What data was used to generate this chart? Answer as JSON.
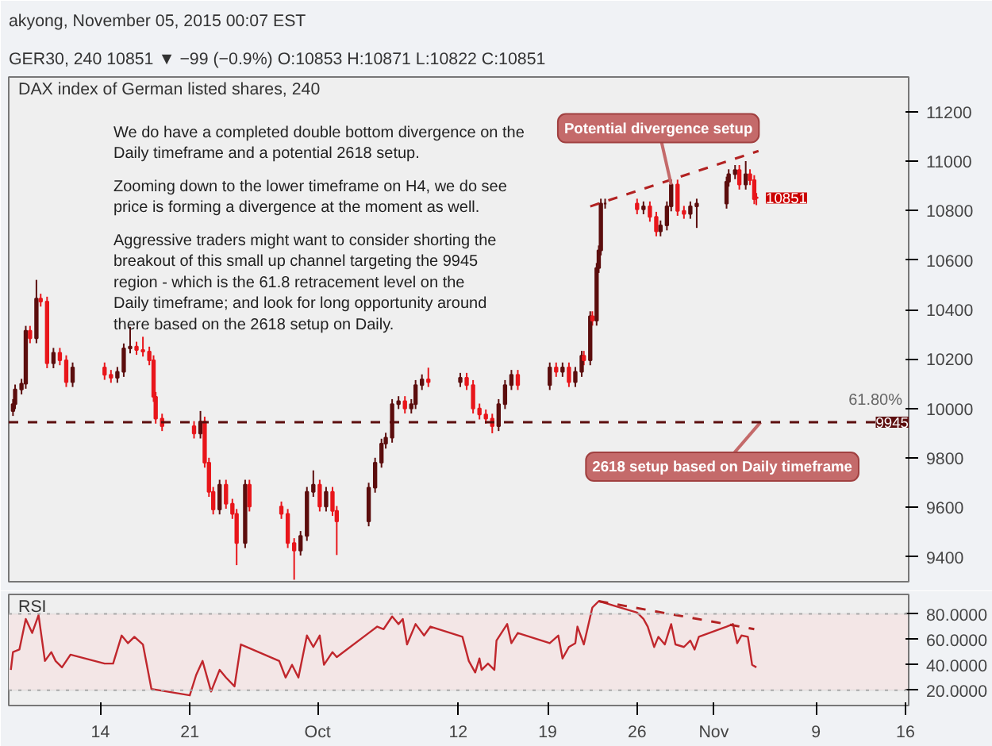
{
  "chart_data": [
    {
      "type": "candlestick",
      "title": "DAX index of German listed shares, 240",
      "subtitle": "GER30, 240  10851 ▼ −99 (−0.9%)  O:10853  H:10871  L:10822  C:10851",
      "annotations": [
        "akyong, November 05, 2015 00:07 EST",
        "We do have a completed double bottom divergence on the Daily timeframe and a potential 2618 setup.",
        "Zooming down to the lower timeframe on H4, we do see price is forming a divergence at the moment as well.",
        "Aggressive traders might want to consider shorting the breakout of this small up channel targeting the 9945 region - which is the 61.8 retracement level on the Daily timeframe; and look for long opportunity around there based on the 2618 setup on Daily.",
        {
          "text": "Potential divergence setup",
          "x": "2015-10-28T16:00",
          "y": 10905
        },
        {
          "text": "2618 setup based on Daily timeframe",
          "x": "2015-11-04T16:00",
          "y": 9945
        },
        {
          "text": "61.80%",
          "x": "2015-11-16T06:00",
          "y": 9945
        },
        {
          "text": "10851",
          "x": "2015-11-04T08:00",
          "y": 10851
        }
      ],
      "x": [
        "2015-09-07T04:00",
        "2015-09-07T08:00",
        "2015-09-07T20:00",
        "2015-09-08T04:00",
        "2015-09-08T12:00",
        "2015-09-09T00:00",
        "2015-09-09T08:00",
        "2015-09-09T20:00",
        "2015-09-10T08:00",
        "2015-09-10T20:00",
        "2015-09-11T08:00",
        "2015-09-11T20:00",
        "2015-09-14T08:00",
        "2015-09-14T20:00",
        "2015-09-15T08:00",
        "2015-09-15T20:00",
        "2015-09-16T08:00",
        "2015-09-16T20:00",
        "2015-09-17T08:00",
        "2015-09-17T20:00",
        "2015-09-18T04:00",
        "2015-09-18T08:00",
        "2015-09-18T20:00",
        "2015-09-21T08:00",
        "2015-09-21T20:00",
        "2015-09-22T04:00",
        "2015-09-22T12:00",
        "2015-09-22T20:00",
        "2015-09-23T08:00",
        "2015-09-23T20:00",
        "2015-09-24T08:00",
        "2015-09-24T16:00",
        "2015-09-25T08:00",
        "2015-09-25T16:00",
        "2015-09-28T04:00",
        "2015-09-28T16:00",
        "2015-09-29T04:00",
        "2015-09-29T16:00",
        "2015-09-30T04:00",
        "2015-09-30T16:00",
        "2015-10-01T04:00",
        "2015-10-01T16:00",
        "2015-10-02T04:00",
        "2015-10-02T12:00",
        "2015-10-05T00:00",
        "2015-10-05T12:00",
        "2015-10-06T00:00",
        "2015-10-06T08:00",
        "2015-10-06T20:00",
        "2015-10-07T08:00",
        "2015-10-07T20:00",
        "2015-10-08T08:00",
        "2015-10-08T16:00",
        "2015-10-09T04:00",
        "2015-10-09T16:00",
        "2015-10-12T04:00",
        "2015-10-12T16:00",
        "2015-10-13T04:00",
        "2015-10-13T16:00",
        "2015-10-14T04:00",
        "2015-10-14T16:00",
        "2015-10-15T04:00",
        "2015-10-15T16:00",
        "2015-10-16T04:00",
        "2015-10-16T16:00",
        "2015-10-19T04:00",
        "2015-10-19T16:00",
        "2015-10-20T04:00",
        "2015-10-20T16:00",
        "2015-10-21T04:00",
        "2015-10-21T16:00",
        "2015-10-21T20:00",
        "2015-10-22T08:00",
        "2015-10-22T12:00",
        "2015-10-22T20:00",
        "2015-10-23T00:00",
        "2015-10-23T04:00",
        "2015-10-23T12:00",
        "2015-10-26T00:00",
        "2015-10-26T12:00",
        "2015-10-27T00:00",
        "2015-10-27T12:00",
        "2015-10-27T20:00",
        "2015-10-28T08:00",
        "2015-10-28T16:00",
        "2015-10-29T04:00",
        "2015-10-29T16:00",
        "2015-10-30T04:00",
        "2015-10-30T16:00",
        "2015-11-02T00:00",
        "2015-11-02T04:00",
        "2015-11-02T16:00",
        "2015-11-03T00:00",
        "2015-11-03T12:00",
        "2015-11-03T20:00",
        "2015-11-04T04:00",
        "2015-11-04T08:00"
      ],
      "ohlc": [
        [
          9990,
          10038,
          9970,
          10018
        ],
        [
          10018,
          10097,
          9998,
          10077
        ],
        [
          10077,
          10120,
          10057,
          10100
        ],
        [
          10100,
          10334,
          10080,
          10314
        ],
        [
          10314,
          10334,
          10264,
          10284
        ],
        [
          10284,
          10520,
          10264,
          10444
        ],
        [
          10444,
          10464,
          10412,
          10432
        ],
        [
          10432,
          10452,
          10163,
          10183
        ],
        [
          10183,
          10245,
          10163,
          10225
        ],
        [
          10225,
          10245,
          10175,
          10195
        ],
        [
          10195,
          10215,
          10087,
          10107
        ],
        [
          10107,
          10186,
          10087,
          10166
        ],
        [
          10166,
          10186,
          10116,
          10136
        ],
        [
          10136,
          10156,
          10104,
          10124
        ],
        [
          10124,
          10168,
          10104,
          10148
        ],
        [
          10148,
          10263,
          10128,
          10243
        ],
        [
          10243,
          10330,
          10223,
          10250
        ],
        [
          10250,
          10270,
          10217,
          10237
        ],
        [
          10237,
          10290,
          10210,
          10230
        ],
        [
          10230,
          10250,
          10175,
          10195
        ],
        [
          10195,
          10215,
          10027,
          10047
        ],
        [
          10047,
          10067,
          9939,
          9959
        ],
        [
          9959,
          9979,
          9909,
          9929
        ],
        [
          9929,
          9949,
          9879,
          9899
        ],
        [
          9899,
          9990,
          9879,
          9947
        ],
        [
          9947,
          9967,
          9761,
          9781
        ],
        [
          9781,
          9801,
          9643,
          9663
        ],
        [
          9663,
          9683,
          9572,
          9592
        ],
        [
          9592,
          9712,
          9572,
          9692
        ],
        [
          9692,
          9712,
          9595,
          9615
        ],
        [
          9615,
          9635,
          9554,
          9574
        ],
        [
          9574,
          9594,
          9367,
          9456
        ],
        [
          9456,
          9712,
          9436,
          9692
        ],
        [
          9692,
          9712,
          9584,
          9604
        ],
        [
          9604,
          9624,
          9554,
          9574
        ],
        [
          9574,
          9594,
          9436,
          9456
        ],
        [
          9456,
          9476,
          9308,
          9426
        ],
        [
          9426,
          9505,
          9406,
          9485
        ],
        [
          9485,
          9683,
          9465,
          9663
        ],
        [
          9663,
          9750,
          9643,
          9692
        ],
        [
          9692,
          9712,
          9584,
          9604
        ],
        [
          9604,
          9683,
          9584,
          9663
        ],
        [
          9663,
          9683,
          9566,
          9586
        ],
        [
          9586,
          9606,
          9408,
          9544
        ],
        [
          9544,
          9700,
          9524,
          9680
        ],
        [
          9680,
          9801,
          9660,
          9781
        ],
        [
          9781,
          9878,
          9761,
          9858
        ],
        [
          9858,
          9902,
          9838,
          9882
        ],
        [
          9882,
          10038,
          9862,
          10018
        ],
        [
          10018,
          10050,
          9998,
          10030
        ],
        [
          10030,
          10050,
          9980,
          10000
        ],
        [
          10000,
          10038,
          9980,
          10018
        ],
        [
          10018,
          10115,
          9998,
          10095
        ],
        [
          10095,
          10138,
          10075,
          10118
        ],
        [
          10118,
          10165,
          10087,
          10107
        ],
        [
          10107,
          10144,
          10087,
          10124
        ],
        [
          10124,
          10144,
          10075,
          10095
        ],
        [
          10095,
          10115,
          9980,
          10000
        ],
        [
          10000,
          10020,
          9956,
          9976
        ],
        [
          9976,
          9996,
          9939,
          9959
        ],
        [
          9959,
          9979,
          9900,
          9929
        ],
        [
          9929,
          10038,
          9909,
          10018
        ],
        [
          10018,
          10115,
          9998,
          10095
        ],
        [
          10095,
          10156,
          10075,
          10136
        ],
        [
          10136,
          10156,
          10075,
          10095
        ],
        [
          10095,
          10186,
          10075,
          10166
        ],
        [
          10166,
          10186,
          10128,
          10148
        ],
        [
          10148,
          10186,
          10128,
          10166
        ],
        [
          10166,
          10186,
          10087,
          10107
        ],
        [
          10107,
          10168,
          10087,
          10148
        ],
        [
          10148,
          10233,
          10128,
          10213
        ],
        [
          10213,
          10233,
          10175,
          10195
        ],
        [
          10195,
          10393,
          10175,
          10373
        ],
        [
          10373,
          10393,
          10335,
          10355
        ],
        [
          10355,
          10588,
          10335,
          10568
        ],
        [
          10568,
          10659,
          10548,
          10639
        ],
        [
          10639,
          10848,
          10619,
          10828
        ],
        [
          10828,
          10848,
          10808,
          10828
        ],
        [
          10828,
          10848,
          10785,
          10805
        ],
        [
          10805,
          10837,
          10785,
          10817
        ],
        [
          10817,
          10837,
          10755,
          10775
        ],
        [
          10775,
          10795,
          10696,
          10716
        ],
        [
          10716,
          10760,
          10696,
          10740
        ],
        [
          10740,
          10837,
          10720,
          10817
        ],
        [
          10817,
          10925,
          10797,
          10905
        ],
        [
          10905,
          10925,
          10779,
          10799
        ],
        [
          10799,
          10819,
          10767,
          10787
        ],
        [
          10787,
          10837,
          10767,
          10817
        ],
        [
          10817,
          10848,
          10730,
          10828
        ],
        [
          10828,
          10937,
          10808,
          10917
        ],
        [
          10917,
          10967,
          10897,
          10947
        ],
        [
          10947,
          10984,
          10927,
          10964
        ],
        [
          10964,
          10984,
          10885,
          10905
        ],
        [
          10905,
          11000,
          10885,
          10947
        ],
        [
          10947,
          10967,
          10903,
          10923
        ],
        [
          10923,
          10943,
          10826,
          10846
        ],
        [
          10853,
          10871,
          10822,
          10851
        ]
      ],
      "colors": [
        "#5c0e0e",
        "#5c0e0e",
        "#5c0e0e",
        "#5c0e0e",
        "#e8161b",
        "#5c0e0e",
        "#e8161b",
        "#e8161b",
        "#5c0e0e",
        "#e8161b",
        "#e8161b",
        "#5c0e0e",
        "#e8161b",
        "#e8161b",
        "#5c0e0e",
        "#5c0e0e",
        "#5c0e0e",
        "#e8161b",
        "#e8161b",
        "#e8161b",
        "#e8161b",
        "#e8161b",
        "#e8161b",
        "#e8161b",
        "#5c0e0e",
        "#e8161b",
        "#e8161b",
        "#e8161b",
        "#5c0e0e",
        "#e8161b",
        "#e8161b",
        "#e8161b",
        "#5c0e0e",
        "#e8161b",
        "#e8161b",
        "#e8161b",
        "#e8161b",
        "#5c0e0e",
        "#5c0e0e",
        "#5c0e0e",
        "#e8161b",
        "#5c0e0e",
        "#e8161b",
        "#e8161b",
        "#5c0e0e",
        "#5c0e0e",
        "#5c0e0e",
        "#5c0e0e",
        "#5c0e0e",
        "#5c0e0e",
        "#e8161b",
        "#5c0e0e",
        "#5c0e0e",
        "#5c0e0e",
        "#e8161b",
        "#5c0e0e",
        "#e8161b",
        "#e8161b",
        "#e8161b",
        "#e8161b",
        "#e8161b",
        "#5c0e0e",
        "#5c0e0e",
        "#5c0e0e",
        "#e8161b",
        "#5c0e0e",
        "#e8161b",
        "#5c0e0e",
        "#e8161b",
        "#5c0e0e",
        "#5c0e0e",
        "#e8161b",
        "#5c0e0e",
        "#e8161b",
        "#5c0e0e",
        "#5c0e0e",
        "#5c0e0e",
        "#5c0e0e",
        "#e8161b",
        "#5c0e0e",
        "#e8161b",
        "#e8161b",
        "#5c0e0e",
        "#5c0e0e",
        "#5c0e0e",
        "#e8161b",
        "#e8161b",
        "#5c0e0e",
        "#5c0e0e",
        "#5c0e0e",
        "#5c0e0e",
        "#5c0e0e",
        "#e8161b",
        "#5c0e0e",
        "#e8161b",
        "#e8161b",
        "#e8161b"
      ],
      "series": [
        {
          "type": "line",
          "x": [
            "2015-10-22T08:00",
            "2015-11-04T12:00"
          ],
          "values": [
            10817,
            11041
          ],
          "color": "#b22222",
          "line_style": "dashed"
        }
      ],
      "ref_lines": [
        {
          "axis": "y",
          "value": 9945,
          "label": "9945",
          "color": "#5c0e0e",
          "line_style": "dashed"
        }
      ],
      "xlim": [
        "2015-09-06T20:00",
        "2015-11-16T06:00"
      ],
      "xticks": [
        {
          "value": "2015-09-14",
          "label": "14"
        },
        {
          "value": "2015-09-21",
          "label": "21"
        },
        {
          "value": "2015-10-01",
          "label": "Oct"
        },
        {
          "value": "2015-10-12",
          "label": "12"
        },
        {
          "value": "2015-10-19",
          "label": "19"
        },
        {
          "value": "2015-10-26",
          "label": "26"
        },
        {
          "value": "2015-11-01",
          "label": "Nov"
        },
        {
          "value": "2015-11-09",
          "label": "9"
        },
        {
          "value": "2015-11-16",
          "label": "16"
        }
      ],
      "ylim": [
        9300,
        11340
      ],
      "yticks": [
        9400,
        9600,
        9800,
        10000,
        10200,
        10400,
        10600,
        10800,
        11000,
        11200
      ],
      "tick_labels": "y",
      "grid": false
    },
    {
      "type": "line",
      "title": "RSI",
      "x": [
        "2015-09-07T00:00",
        "2015-09-07T04:00",
        "2015-09-07T16:00",
        "2015-09-08T04:00",
        "2015-09-08T16:00",
        "2015-09-09T04:00",
        "2015-09-09T16:00",
        "2015-09-10T04:00",
        "2015-09-10T12:00",
        "2015-09-11T00:00",
        "2015-09-11T16:00",
        "2015-09-14T08:00",
        "2015-09-15T00:00",
        "2015-09-15T16:00",
        "2015-09-16T04:00",
        "2015-09-16T16:00",
        "2015-09-17T08:00",
        "2015-09-18T00:00",
        "2015-09-21T00:00",
        "2015-09-21T12:00",
        "2015-09-22T00:00",
        "2015-09-22T16:00",
        "2015-09-23T08:00",
        "2015-09-23T20:00",
        "2015-09-24T12:00",
        "2015-09-25T00:00",
        "2015-09-28T00:00",
        "2015-09-28T12:00",
        "2015-09-29T00:00",
        "2015-09-29T12:00",
        "2015-09-30T04:00",
        "2015-09-30T16:00",
        "2015-10-01T04:00",
        "2015-10-01T12:00",
        "2015-10-02T04:00",
        "2015-10-02T12:00",
        "2015-10-05T00:00",
        "2015-10-05T16:00",
        "2015-10-06T04:00",
        "2015-10-06T20:00",
        "2015-10-07T08:00",
        "2015-10-07T16:00",
        "2015-10-08T00:00",
        "2015-10-08T16:00",
        "2015-10-09T08:00",
        "2015-10-09T20:00",
        "2015-10-12T08:00",
        "2015-10-12T20:00",
        "2015-10-13T08:00",
        "2015-10-13T16:00",
        "2015-10-13T20:00",
        "2015-10-14T08:00",
        "2015-10-14T20:00",
        "2015-10-15T00:00",
        "2015-10-15T20:00",
        "2015-10-16T04:00",
        "2015-10-16T16:00",
        "2015-10-19T04:00",
        "2015-10-19T20:00",
        "2015-10-20T04:00",
        "2015-10-20T16:00",
        "2015-10-21T04:00",
        "2015-10-21T08:00",
        "2015-10-21T20:00",
        "2015-10-22T12:00",
        "2015-10-23T00:00",
        "2015-10-23T16:00",
        "2015-10-26T00:00",
        "2015-10-26T12:00",
        "2015-10-26T20:00",
        "2015-10-27T08:00",
        "2015-10-27T16:00",
        "2015-10-28T04:00",
        "2015-10-28T16:00",
        "2015-10-29T00:00",
        "2015-10-29T16:00",
        "2015-10-30T04:00",
        "2015-10-30T12:00",
        "2015-10-30T20:00",
        "2015-11-02T00:00",
        "2015-11-02T12:00",
        "2015-11-02T20:00",
        "2015-11-03T04:00",
        "2015-11-03T16:00",
        "2015-11-04T00:00",
        "2015-11-04T08:00"
      ],
      "series": [
        {
          "values": [
            36,
            50,
            52,
            76,
            65,
            79,
            43,
            50,
            43,
            38,
            48,
            41,
            41,
            63,
            57,
            62,
            56,
            21,
            16,
            32,
            43,
            19,
            36,
            30,
            23,
            56,
            43,
            30,
            40,
            30,
            63,
            54,
            63,
            40,
            50,
            46,
            65,
            70,
            68,
            78,
            72,
            76,
            56,
            72,
            63,
            70,
            62,
            43,
            34,
            45,
            36,
            41,
            36,
            59,
            72,
            57,
            65,
            57,
            63,
            45,
            54,
            57,
            70,
            56,
            85,
            90,
            88,
            81,
            76,
            70,
            54,
            62,
            56,
            72,
            56,
            54,
            59,
            52,
            62,
            70,
            72,
            57,
            63,
            62,
            40,
            38
          ],
          "color": "#c0272d"
        },
        {
          "type": "line",
          "x": [
            "2015-10-23T00:00",
            "2015-11-04T04:00"
          ],
          "values": [
            90,
            68
          ],
          "color": "#b22222",
          "line_style": "dashed"
        }
      ],
      "bands": [
        {
          "axis": "y",
          "from": 20,
          "to": 80,
          "color": "#f3e6e6"
        }
      ],
      "ref_lines": [
        {
          "axis": "y",
          "value": 80,
          "color": "#aaaaaa",
          "line_style": "dotted"
        },
        {
          "axis": "y",
          "value": 20,
          "color": "#aaaaaa",
          "line_style": "dotted"
        }
      ],
      "xlim": [
        "2015-09-06T20:00",
        "2015-11-16T06:00"
      ],
      "xticks": [
        {
          "value": "2015-09-14",
          "label": "14"
        },
        {
          "value": "2015-09-21",
          "label": "21"
        },
        {
          "value": "2015-10-01",
          "label": "Oct"
        },
        {
          "value": "2015-10-12",
          "label": "12"
        },
        {
          "value": "2015-10-19",
          "label": "19"
        },
        {
          "value": "2015-10-26",
          "label": "26"
        },
        {
          "value": "2015-11-01",
          "label": "Nov"
        },
        {
          "value": "2015-11-09",
          "label": "9"
        },
        {
          "value": "2015-11-16",
          "label": "16"
        }
      ],
      "ylim": [
        8,
        95.3
      ],
      "yticks": [
        {
          "value": 20,
          "label": "20.0000"
        },
        {
          "value": 40,
          "label": "40.0000"
        },
        {
          "value": 60,
          "label": "60.0000"
        },
        {
          "value": 80,
          "label": "80.0000"
        }
      ],
      "grid": false
    }
  ]
}
